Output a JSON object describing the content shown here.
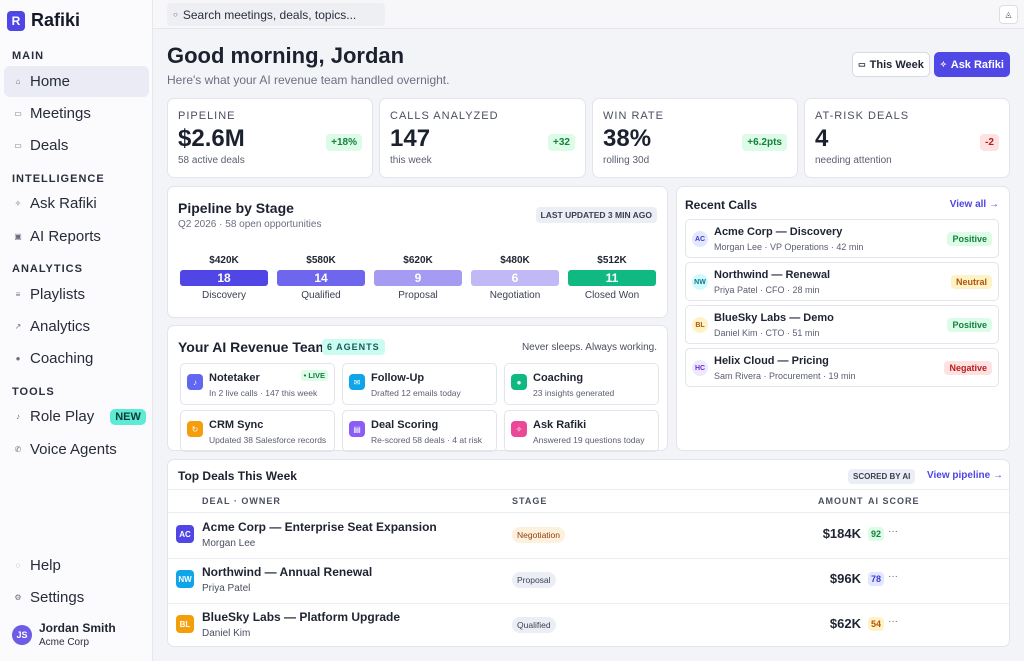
{
  "app": {
    "name": "Rafiki",
    "logo_letter": "R"
  },
  "sidebar": {
    "sections": {
      "main": "MAIN",
      "intelligence": "INTELLIGENCE",
      "analytics": "ANALYTICS",
      "tools": "TOOLS"
    },
    "items": {
      "home": "Home",
      "meetings": "Meetings",
      "deals": "Deals",
      "ask_rafiki": "Ask Rafiki",
      "ai_reports": "AI Reports",
      "playlists": "Playlists",
      "analytics": "Analytics",
      "coaching": "Coaching",
      "role_play": "Role Play",
      "role_play_badge": "NEW",
      "voice_agents": "Voice Agents",
      "help": "Help",
      "settings": "Settings"
    },
    "user": {
      "initials": "JS",
      "name": "Jordan Smith",
      "org": "Acme Corp"
    }
  },
  "topbar": {
    "search_placeholder": "Search meetings, deals, topics..."
  },
  "header": {
    "greeting": "Good morning, Jordan",
    "subtitle": "Here's what your AI revenue team handled overnight.",
    "week_button": "This Week",
    "ask_button": "Ask Rafiki"
  },
  "kpis": [
    {
      "label": "PIPELINE",
      "value": "$2.6M",
      "caption": "58 active deals",
      "change": "+18%"
    },
    {
      "label": "CALLS ANALYZED",
      "value": "147",
      "caption": "this week",
      "change": "+32"
    },
    {
      "label": "WIN RATE",
      "value": "38%",
      "caption": "rolling 30d",
      "change": "+6.2pts"
    },
    {
      "label": "AT-RISK DEALS",
      "value": "4",
      "caption": "needing attention",
      "change": "-2"
    }
  ],
  "pipeline": {
    "title": "Pipeline by Stage",
    "subtitle": "Q2 2026 · 58 open opportunities",
    "updated": "LAST UPDATED 3 MIN AGO",
    "stages": [
      {
        "amount": "$420K",
        "count": "18",
        "name": "Discovery",
        "color": "#4f46e5"
      },
      {
        "amount": "$580K",
        "count": "14",
        "name": "Qualified",
        "color": "#6f66ee"
      },
      {
        "amount": "$620K",
        "count": "9",
        "name": "Proposal",
        "color": "#a59bf2"
      },
      {
        "amount": "$480K",
        "count": "6",
        "name": "Negotiation",
        "color": "#c0b9f5"
      },
      {
        "amount": "$512K",
        "count": "11",
        "name": "Closed Won",
        "color": "#10b981"
      }
    ]
  },
  "agents": {
    "title": "Your AI Revenue Team",
    "badge": "6 AGENTS",
    "tagline": "Never sleeps. Always working.",
    "list": [
      {
        "name": "Notetaker",
        "desc": "In 2 live calls · 147 this week",
        "live": "LIVE",
        "color": "#6366f1"
      },
      {
        "name": "Follow-Up",
        "desc": "Drafted 12 emails today",
        "color": "#0ea5e9"
      },
      {
        "name": "Coaching",
        "desc": "23 insights generated",
        "color": "#10b981"
      },
      {
        "name": "CRM Sync",
        "desc": "Updated 38 Salesforce records",
        "color": "#f59e0b"
      },
      {
        "name": "Deal Scoring",
        "desc": "Re-scored 58 deals · 4 at risk",
        "color": "#8b5cf6"
      },
      {
        "name": "Ask Rafiki",
        "desc": "Answered 19 questions today",
        "color": "#ec4899"
      }
    ]
  },
  "recent_calls": {
    "title": "Recent Calls",
    "view_all": "View all →",
    "calls": [
      {
        "initials": "AC",
        "title": "Acme Corp — Discovery",
        "meta": "Morgan Lee · VP Operations · 42 min",
        "sentiment": "Positive"
      },
      {
        "initials": "NW",
        "title": "Northwind — Renewal",
        "meta": "Priya Patel · CFO · 28 min",
        "sentiment": "Neutral"
      },
      {
        "initials": "BL",
        "title": "BlueSky Labs — Demo",
        "meta": "Daniel Kim · CTO · 51 min",
        "sentiment": "Positive"
      },
      {
        "initials": "HC",
        "title": "Helix Cloud — Pricing",
        "meta": "Sam Rivera · Procurement · 19 min",
        "sentiment": "Negative"
      }
    ]
  },
  "top_deals": {
    "title": "Top Deals This Week",
    "scored": "SCORED BY AI",
    "view_pipeline": "View pipeline →",
    "columns": {
      "deal": "DEAL · OWNER",
      "stage": "STAGE",
      "amount": "AMOUNT",
      "score": "AI SCORE"
    },
    "rows": [
      {
        "initials": "AC",
        "deal": "Acme Corp — Enterprise Seat Expansion",
        "owner": "Morgan Lee",
        "stage": "Negotiation",
        "amount": "$184K",
        "score": "92"
      },
      {
        "initials": "NW",
        "deal": "Northwind — Annual Renewal",
        "owner": "Priya Patel",
        "stage": "Proposal",
        "amount": "$96K",
        "score": "78"
      },
      {
        "initials": "BL",
        "deal": "BlueSky Labs — Platform Upgrade",
        "owner": "Daniel Kim",
        "stage": "Qualified",
        "amount": "$62K",
        "score": "54"
      }
    ]
  }
}
